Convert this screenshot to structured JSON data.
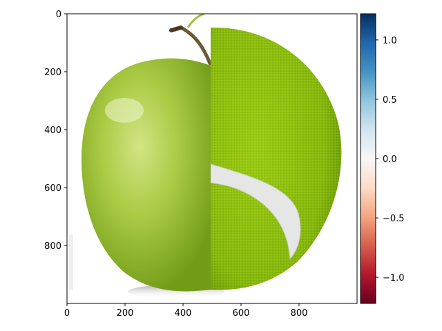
{
  "chart_data": {
    "type": "heatmap",
    "title": "",
    "xlabel": "",
    "ylabel": "",
    "image": {
      "description_free": true,
      "xlim": [
        0,
        1000
      ],
      "ylim": [
        1000,
        0
      ],
      "xticks": [
        0,
        200,
        400,
        600,
        800
      ],
      "yticks": [
        0,
        200,
        400,
        600,
        800
      ]
    },
    "colorbar": {
      "cmap": "RdBu",
      "range": [
        -1.22,
        1.22
      ],
      "ticks": [
        -1.0,
        -0.5,
        0.0,
        0.5,
        1.0
      ],
      "tick_labels": [
        "−1.0",
        "−0.5",
        "0.0",
        "0.5",
        "1.0"
      ]
    },
    "colors": {
      "apple_light": "#c6dc6e",
      "apple_mid": "#a3c53a",
      "apple_dark": "#6f9a16",
      "ball": "#8dbb10",
      "ball_dark": "#6a9a08",
      "stem": "#6b5a35"
    }
  }
}
